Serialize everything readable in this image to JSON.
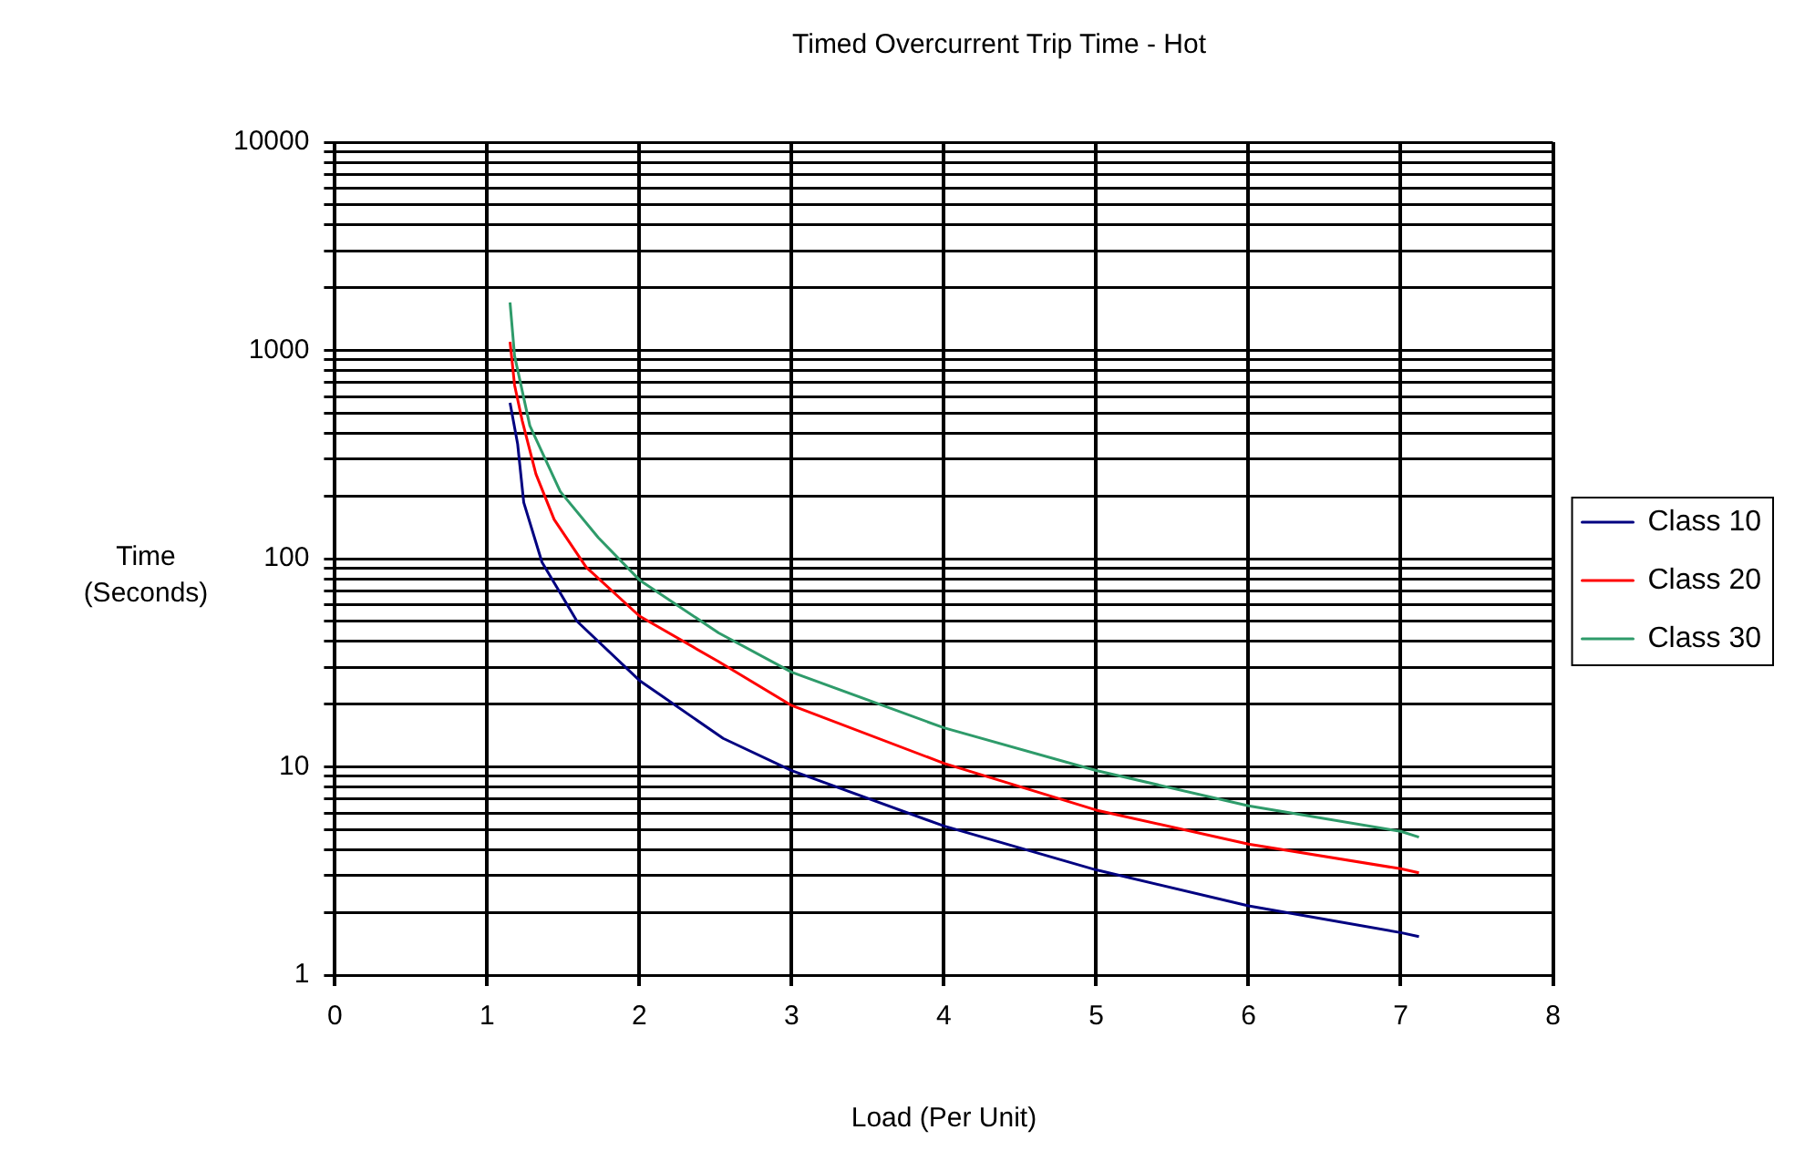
{
  "chart_data": {
    "type": "line",
    "title": "Timed Overcurrent Trip Time - Hot",
    "xlabel": "Load (Per Unit)",
    "ylabel": "Time (Seconds)",
    "log": "y",
    "grid": true,
    "legend": "right",
    "marker": "none",
    "line_style": "solid",
    "xlim": [
      0,
      8
    ],
    "xticks": [
      0,
      1,
      2,
      3,
      4,
      5,
      6,
      7,
      8
    ],
    "ylim": [
      1,
      10000
    ],
    "yticks": [
      1,
      {
        "value": 2,
        "label": null
      },
      {
        "value": 3,
        "label": null
      },
      {
        "value": 4,
        "label": null
      },
      {
        "value": 5,
        "label": null
      },
      {
        "value": 6,
        "label": null
      },
      {
        "value": 7,
        "label": null
      },
      {
        "value": 8,
        "label": null
      },
      {
        "value": 9,
        "label": null
      },
      10,
      {
        "value": 20,
        "label": null
      },
      {
        "value": 30,
        "label": null
      },
      {
        "value": 40,
        "label": null
      },
      {
        "value": 50,
        "label": null
      },
      {
        "value": 60,
        "label": null
      },
      {
        "value": 70,
        "label": null
      },
      {
        "value": 80,
        "label": null
      },
      {
        "value": 90,
        "label": null
      },
      100,
      {
        "value": 200,
        "label": null
      },
      {
        "value": 300,
        "label": null
      },
      {
        "value": 400,
        "label": null
      },
      {
        "value": 500,
        "label": null
      },
      {
        "value": 600,
        "label": null
      },
      {
        "value": 700,
        "label": null
      },
      {
        "value": 800,
        "label": null
      },
      {
        "value": 900,
        "label": null
      },
      1000,
      {
        "value": 2000,
        "label": null
      },
      {
        "value": 3000,
        "label": null
      },
      {
        "value": 4000,
        "label": null
      },
      {
        "value": 5000,
        "label": null
      },
      {
        "value": 6000,
        "label": null
      },
      {
        "value": 7000,
        "label": null
      },
      {
        "value": 8000,
        "label": null
      },
      {
        "value": 9000,
        "label": null
      },
      10000
    ],
    "series": [
      {
        "name": "Class 10",
        "color": "#000080",
        "x": [
          1.15,
          1.2,
          1.24,
          1.36,
          1.59,
          2,
          2.55,
          3,
          4,
          5,
          6,
          7,
          7.12
        ],
        "values": [
          560,
          355,
          186,
          96,
          50,
          26,
          13.7,
          9.6,
          5.2,
          3.2,
          2.15,
          1.6,
          1.53
        ]
      },
      {
        "name": "Class 20",
        "color": "#ff0000",
        "x": [
          1.15,
          1.18,
          1.23,
          1.32,
          1.44,
          1.65,
          2,
          2.52,
          3,
          4,
          5,
          6,
          7,
          7.12
        ],
        "values": [
          1100,
          680,
          460,
          255,
          154,
          91,
          53,
          32,
          19.7,
          10.4,
          6.2,
          4.26,
          3.24,
          3.1
        ]
      },
      {
        "name": "Class 30",
        "color": "#2e9b6a",
        "x": [
          1.15,
          1.18,
          1.28,
          1.48,
          1.73,
          2,
          2.52,
          3,
          4,
          5,
          6,
          7,
          7.12
        ],
        "values": [
          1700,
          940,
          435,
          210,
          126,
          79,
          44,
          28.5,
          15.4,
          9.6,
          6.5,
          4.9,
          4.6
        ]
      }
    ]
  }
}
